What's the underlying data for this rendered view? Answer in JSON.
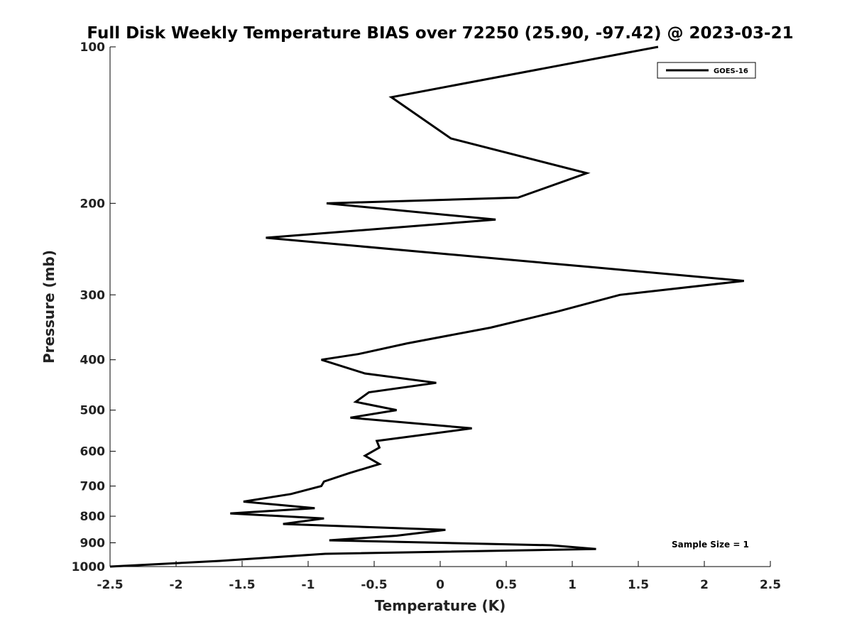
{
  "chart_data": {
    "type": "line",
    "title": "Full Disk Weekly Temperature BIAS over 72250 (25.90, -97.42) @ 2023-03-21",
    "xlabel": "Temperature (K)",
    "ylabel": "Pressure (mb)",
    "xlim": [
      -2.5,
      2.5
    ],
    "ylim": [
      100,
      1000
    ],
    "yscale": "log",
    "yreversed": true,
    "grid": false,
    "legend_position": "top-right",
    "xticks": [
      -2.5,
      -2,
      -1.5,
      -1,
      -0.5,
      0,
      0.5,
      1,
      1.5,
      2,
      2.5
    ],
    "xtick_labels": [
      "-2.5",
      "-2",
      "-1.5",
      "-1",
      "-0.5",
      "0",
      "0.5",
      "1",
      "1.5",
      "2",
      "2.5"
    ],
    "yticks": [
      100,
      200,
      300,
      400,
      500,
      600,
      700,
      800,
      900,
      1000
    ],
    "ytick_labels": [
      "100",
      "200",
      "300",
      "400",
      "500",
      "600",
      "700",
      "800",
      "900",
      "1000"
    ],
    "annotation": "Sample Size = 1",
    "series": [
      {
        "name": "GOES-16",
        "color": "#000000",
        "x": [
          1.65,
          -0.37,
          0.08,
          1.11,
          0.59,
          -0.86,
          0.42,
          -1.32,
          1.12,
          2.3,
          1.36,
          0.89,
          0.38,
          -0.25,
          -0.62,
          -0.9,
          -0.57,
          -0.03,
          -0.54,
          -0.64,
          -0.33,
          -0.68,
          0.24,
          -0.48,
          -0.46,
          -0.57,
          -0.46,
          -0.69,
          -0.88,
          -0.9,
          -1.13,
          -1.49,
          -0.95,
          -1.59,
          -0.88,
          -1.19,
          0.04,
          -0.33,
          -0.84,
          0.84,
          1.18,
          -0.87,
          -1.67,
          -2.5
        ],
        "y": [
          100,
          125,
          150,
          175,
          195,
          200,
          215,
          233,
          265,
          282,
          300,
          323,
          347,
          372,
          390,
          400,
          425,
          443,
          462,
          482,
          500,
          517,
          542,
          573,
          590,
          612,
          635,
          661,
          686,
          700,
          725,
          750,
          772,
          790,
          808,
          828,
          850,
          872,
          890,
          910,
          925,
          945,
          975,
          1000
        ]
      }
    ]
  }
}
